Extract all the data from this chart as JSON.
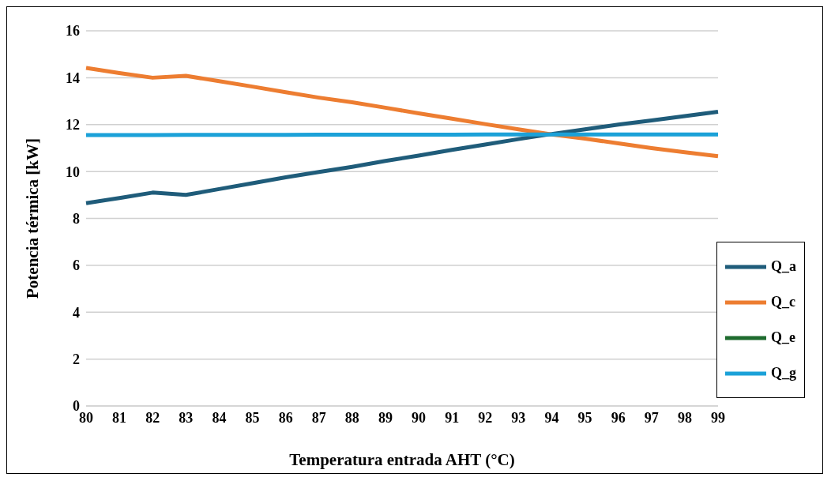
{
  "chart_data": {
    "type": "line",
    "xlabel": "Temperatura entrada AHT (°C)",
    "ylabel": "Potencia térmica [kW]",
    "categories": [
      "80",
      "81",
      "82",
      "83",
      "84",
      "85",
      "86",
      "87",
      "88",
      "89",
      "90",
      "91",
      "92",
      "93",
      "94",
      "95",
      "96",
      "97",
      "98",
      "99"
    ],
    "series": [
      {
        "name": "Q_a",
        "color": "#1f5c7a",
        "values": [
          8.65,
          8.87,
          9.1,
          9.0,
          9.25,
          9.5,
          9.75,
          9.98,
          10.2,
          10.45,
          10.68,
          10.92,
          11.15,
          11.38,
          11.6,
          11.8,
          12.0,
          12.18,
          12.36,
          12.55
        ]
      },
      {
        "name": "Q_c",
        "color": "#ed7d31",
        "values": [
          14.42,
          14.2,
          14.0,
          14.08,
          13.85,
          13.62,
          13.38,
          13.15,
          12.95,
          12.72,
          12.48,
          12.25,
          12.02,
          11.8,
          11.58,
          11.4,
          11.2,
          11.0,
          10.82,
          10.65
        ]
      },
      {
        "name": "Q_e",
        "color": "#1e6b2e",
        "values": [
          null,
          null,
          null,
          null,
          null,
          null,
          null,
          null,
          null,
          null,
          null,
          null,
          null,
          null,
          null,
          null,
          null,
          null,
          null,
          null
        ]
      },
      {
        "name": "Q_g",
        "color": "#1ba1d8",
        "values": [
          11.55,
          11.55,
          11.55,
          11.56,
          11.56,
          11.56,
          11.56,
          11.57,
          11.57,
          11.57,
          11.57,
          11.57,
          11.58,
          11.58,
          11.58,
          11.58,
          11.58,
          11.58,
          11.58,
          11.58
        ]
      }
    ],
    "ylim": [
      0,
      16
    ],
    "yticks": [
      0,
      2,
      4,
      6,
      8,
      10,
      12,
      14,
      16
    ],
    "grid": "y",
    "legend": "bottom right",
    "marker": "none",
    "line_style": "solid"
  }
}
